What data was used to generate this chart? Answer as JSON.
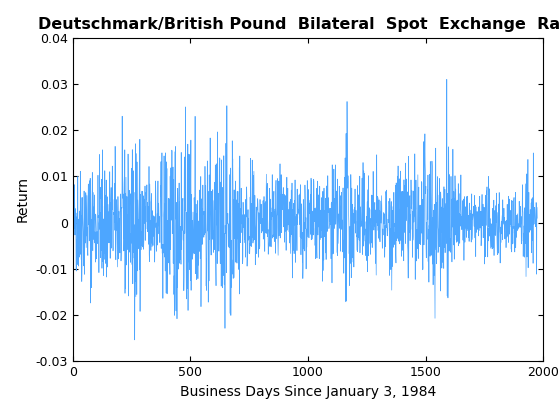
{
  "title": "Deutschmark/British Pound  Bilateral  Spot  Exchange  Rate",
  "xlabel": "Business Days Since January 3, 1984",
  "ylabel": "Return",
  "xlim": [
    0,
    2000
  ],
  "ylim": [
    -0.03,
    0.04
  ],
  "yticks": [
    -0.03,
    -0.02,
    -0.01,
    0,
    0.01,
    0.02,
    0.03,
    0.04
  ],
  "xticks": [
    0,
    500,
    1000,
    1500,
    2000
  ],
  "line_color": "#4da6ff",
  "n_points": 1975,
  "seed": 42,
  "background_color": "#ffffff",
  "title_fontsize": 11.5,
  "label_fontsize": 10,
  "tick_fontsize": 9
}
